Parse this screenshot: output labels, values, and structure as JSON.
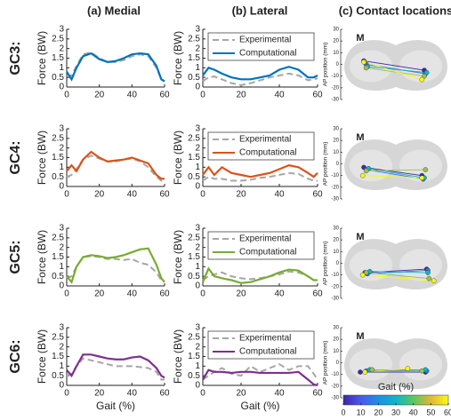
{
  "column_titles": [
    "(a) Medial",
    "(b) Lateral",
    "(c) Contact locations"
  ],
  "row_labels": [
    "GC3:",
    "GC4:",
    "GC5:",
    "GC6:"
  ],
  "chart_data": [
    {
      "type": "line",
      "ylabel": "Force (BW)",
      "xlim": [
        0,
        60
      ],
      "xticks": [
        0,
        20,
        40,
        60
      ],
      "ylim": [
        0,
        3
      ],
      "yticks": [
        0,
        0.5,
        1,
        1.5,
        2,
        2.5,
        3
      ],
      "x": [
        0,
        3,
        6,
        10,
        15,
        20,
        25,
        30,
        35,
        40,
        45,
        50,
        55,
        58,
        60
      ],
      "legend": false,
      "series": [
        {
          "color": "#a6a6a6",
          "dash": true,
          "values": [
            0.6,
            0.6,
            1.1,
            1.7,
            1.8,
            1.5,
            1.3,
            1.3,
            1.4,
            1.6,
            1.7,
            1.6,
            1.0,
            0.4,
            0.3
          ]
        },
        {
          "color": "#0072bd",
          "dash": false,
          "values": [
            0.8,
            0.4,
            1.0,
            1.6,
            1.75,
            1.45,
            1.3,
            1.35,
            1.5,
            1.7,
            1.75,
            1.7,
            1.1,
            0.4,
            0.3
          ]
        }
      ]
    },
    {
      "type": "line",
      "ylabel": "Force (BW)",
      "xlim": [
        0,
        60
      ],
      "xticks": [
        0,
        20,
        40,
        60
      ],
      "ylim": [
        0,
        3
      ],
      "yticks": [
        0,
        0.5,
        1,
        1.5,
        2,
        2.5,
        3
      ],
      "x": [
        0,
        3,
        6,
        10,
        15,
        20,
        25,
        30,
        35,
        40,
        45,
        50,
        55,
        58,
        60
      ],
      "legend": true,
      "series": [
        {
          "name": "Experimental",
          "color": "#a6a6a6",
          "dash": true,
          "values": [
            0.3,
            0.5,
            0.55,
            0.4,
            0.2,
            0.1,
            0.2,
            0.35,
            0.5,
            0.6,
            0.7,
            0.6,
            0.35,
            0.4,
            0.45
          ]
        },
        {
          "name": "Computational",
          "color": "#0072bd",
          "dash": false,
          "values": [
            0.6,
            1.0,
            0.9,
            0.7,
            0.5,
            0.4,
            0.4,
            0.5,
            0.6,
            0.9,
            1.05,
            0.9,
            0.5,
            0.5,
            0.6
          ]
        }
      ]
    },
    {
      "type": "contact",
      "label": "M",
      "ylabel": "AP position (mm)",
      "ylim": [
        -30,
        30
      ],
      "yticks": [
        -30,
        -20,
        -10,
        0,
        10,
        20,
        30
      ],
      "xlim": [
        -45,
        45
      ],
      "gait": [
        0,
        15,
        30,
        45,
        60
      ],
      "medial": {
        "x": [
          -27,
          -25,
          -24,
          -25,
          -27
        ],
        "y": [
          3,
          0,
          -2,
          -3,
          2
        ]
      },
      "lateral": {
        "x": [
          24,
          25,
          26,
          24,
          22
        ],
        "y": [
          -5,
          -8,
          -7,
          -10,
          -13
        ]
      }
    },
    {
      "type": "line",
      "ylabel": "Force (BW)",
      "xlim": [
        0,
        60
      ],
      "xticks": [
        0,
        20,
        40,
        60
      ],
      "ylim": [
        0,
        3
      ],
      "yticks": [
        0,
        0.5,
        1,
        1.5,
        2,
        2.5,
        3
      ],
      "x": [
        0,
        3,
        6,
        10,
        15,
        20,
        25,
        30,
        35,
        40,
        45,
        50,
        55,
        58,
        60
      ],
      "legend": false,
      "series": [
        {
          "color": "#a6a6a6",
          "dash": true,
          "values": [
            0.5,
            0.6,
            0.9,
            1.4,
            1.6,
            1.45,
            1.3,
            1.3,
            1.4,
            1.45,
            1.3,
            1.0,
            0.5,
            0.3,
            0.3
          ]
        },
        {
          "color": "#d95319",
          "dash": false,
          "values": [
            0.8,
            1.1,
            0.8,
            1.4,
            1.8,
            1.5,
            1.3,
            1.35,
            1.4,
            1.5,
            1.35,
            1.2,
            0.6,
            0.4,
            0.4
          ]
        }
      ]
    },
    {
      "type": "line",
      "ylabel": "Force (BW)",
      "xlim": [
        0,
        60
      ],
      "xticks": [
        0,
        20,
        40,
        60
      ],
      "ylim": [
        0,
        3
      ],
      "yticks": [
        0,
        0.5,
        1,
        1.5,
        2,
        2.5,
        3
      ],
      "x": [
        0,
        3,
        6,
        10,
        15,
        20,
        25,
        30,
        35,
        40,
        45,
        50,
        55,
        58,
        60
      ],
      "legend": true,
      "series": [
        {
          "name": "Experimental",
          "color": "#a6a6a6",
          "dash": true,
          "values": [
            0.3,
            0.5,
            0.4,
            0.4,
            0.3,
            0.3,
            0.35,
            0.45,
            0.5,
            0.6,
            0.7,
            0.65,
            0.4,
            0.3,
            0.3
          ]
        },
        {
          "name": "Computational",
          "color": "#d95319",
          "dash": false,
          "values": [
            0.6,
            1.0,
            0.6,
            1.0,
            0.7,
            0.6,
            0.5,
            0.6,
            0.7,
            0.9,
            1.1,
            1.0,
            0.7,
            0.5,
            0.7
          ]
        }
      ]
    },
    {
      "type": "contact",
      "label": "M",
      "ylabel": "AP position (mm)",
      "ylim": [
        -30,
        30
      ],
      "yticks": [
        -30,
        -20,
        -10,
        0,
        10,
        20,
        30
      ],
      "xlim": [
        -45,
        45
      ],
      "gait": [
        0,
        15,
        30,
        45,
        60
      ],
      "medial": {
        "x": [
          -27,
          -25,
          -23,
          -25,
          -28
        ],
        "y": [
          -3,
          -5,
          -4,
          -6,
          -10
        ]
      },
      "lateral": {
        "x": [
          22,
          23,
          24,
          25,
          22
        ],
        "y": [
          -10,
          -13,
          -12,
          -5,
          -12
        ]
      }
    },
    {
      "type": "line",
      "ylabel": "Force (BW)",
      "xlim": [
        0,
        60
      ],
      "xticks": [
        0,
        20,
        40,
        60
      ],
      "ylim": [
        0,
        3
      ],
      "yticks": [
        0,
        0.5,
        1,
        1.5,
        2,
        2.5,
        3
      ],
      "x": [
        0,
        3,
        6,
        10,
        15,
        20,
        25,
        30,
        35,
        40,
        45,
        50,
        55,
        58,
        60
      ],
      "legend": false,
      "series": [
        {
          "color": "#a6a6a6",
          "dash": true,
          "values": [
            0.4,
            0.5,
            1.0,
            1.5,
            1.55,
            1.5,
            1.4,
            1.4,
            1.35,
            1.4,
            1.2,
            1.1,
            0.7,
            0.3,
            0.2
          ]
        },
        {
          "color": "#77ac30",
          "dash": false,
          "values": [
            0.5,
            0.2,
            1.0,
            1.5,
            1.6,
            1.55,
            1.45,
            1.5,
            1.6,
            1.75,
            1.9,
            1.95,
            1.1,
            0.4,
            0.2
          ]
        }
      ]
    },
    {
      "type": "line",
      "ylabel": "Force (BW)",
      "xlim": [
        0,
        60
      ],
      "xticks": [
        0,
        20,
        40,
        60
      ],
      "ylim": [
        0,
        3
      ],
      "yticks": [
        0,
        0.5,
        1,
        1.5,
        2,
        2.5,
        3
      ],
      "x": [
        0,
        3,
        6,
        10,
        15,
        20,
        25,
        30,
        35,
        40,
        45,
        50,
        55,
        58,
        60
      ],
      "legend": true,
      "series": [
        {
          "name": "Experimental",
          "color": "#a6a6a6",
          "dash": true,
          "values": [
            0.3,
            0.5,
            0.6,
            0.7,
            0.5,
            0.4,
            0.35,
            0.4,
            0.5,
            0.6,
            0.75,
            0.7,
            0.5,
            0.3,
            0.3
          ]
        },
        {
          "name": "Computational",
          "color": "#77ac30",
          "dash": false,
          "values": [
            0.2,
            0.9,
            0.5,
            0.4,
            0.3,
            0.15,
            0.2,
            0.35,
            0.5,
            0.7,
            0.85,
            0.8,
            0.5,
            0.3,
            0.3
          ]
        }
      ]
    },
    {
      "type": "contact",
      "label": "M",
      "ylabel": "AP position (mm)",
      "ylim": [
        -30,
        30
      ],
      "yticks": [
        -30,
        -20,
        -10,
        0,
        10,
        20,
        30
      ],
      "xlim": [
        -45,
        45
      ],
      "gait": [
        0,
        15,
        30,
        45,
        60
      ],
      "medial": {
        "x": [
          -26,
          -24,
          -22,
          -25,
          -28
        ],
        "y": [
          -8,
          -9,
          -7,
          -8,
          -10
        ]
      },
      "lateral": {
        "x": [
          26,
          27,
          27,
          28,
          32
        ],
        "y": [
          -5,
          -6,
          -8,
          -13,
          -15
        ]
      }
    },
    {
      "type": "line",
      "ylabel": "Force (BW)",
      "xlabel": "Gait (%)",
      "xlim": [
        0,
        60
      ],
      "xticks": [
        0,
        20,
        40,
        60
      ],
      "ylim": [
        0,
        3
      ],
      "yticks": [
        0,
        0.5,
        1,
        1.5,
        2,
        2.5,
        3
      ],
      "x": [
        0,
        3,
        6,
        10,
        15,
        20,
        25,
        30,
        35,
        40,
        45,
        50,
        55,
        58,
        60
      ],
      "legend": false,
      "series": [
        {
          "color": "#a6a6a6",
          "dash": true,
          "values": [
            0.5,
            0.6,
            1.0,
            1.4,
            1.3,
            1.2,
            1.1,
            1.0,
            1.0,
            1.0,
            0.95,
            0.9,
            0.7,
            0.3,
            0.3
          ]
        },
        {
          "color": "#7e2f8e",
          "dash": false,
          "values": [
            0.8,
            0.5,
            1.0,
            1.6,
            1.6,
            1.5,
            1.4,
            1.35,
            1.35,
            1.45,
            1.5,
            1.3,
            0.9,
            0.5,
            0.4
          ]
        }
      ]
    },
    {
      "type": "line",
      "ylabel": "Force (BW)",
      "xlabel": "Gait (%)",
      "xlim": [
        0,
        60
      ],
      "xticks": [
        0,
        20,
        40,
        60
      ],
      "ylim": [
        0,
        3
      ],
      "yticks": [
        0,
        0.5,
        1,
        1.5,
        2,
        2.5,
        3
      ],
      "x": [
        0,
        3,
        6,
        10,
        15,
        20,
        25,
        30,
        35,
        40,
        45,
        50,
        55,
        58,
        60
      ],
      "legend": true,
      "series": [
        {
          "name": "Experimental",
          "color": "#a6a6a6",
          "dash": true,
          "values": [
            0.3,
            0.5,
            0.7,
            0.9,
            0.6,
            0.5,
            1.0,
            0.7,
            0.9,
            1.1,
            0.8,
            1.0,
            1.0,
            0.6,
            0.3
          ]
        },
        {
          "name": "Computational",
          "color": "#7e2f8e",
          "dash": false,
          "values": [
            0.3,
            0.8,
            0.7,
            0.7,
            0.65,
            0.7,
            0.7,
            0.65,
            0.65,
            0.65,
            0.65,
            0.7,
            0.3,
            0.05,
            0.0
          ]
        }
      ]
    },
    {
      "type": "contact",
      "label": "M",
      "ylabel": "AP position (mm)",
      "ylim": [
        -30,
        30
      ],
      "yticks": [
        -30,
        -20,
        -10,
        0,
        10,
        20,
        30
      ],
      "xlim": [
        -45,
        45
      ],
      "gait": [
        0,
        15,
        30,
        45,
        60
      ],
      "medial": {
        "x": [
          -30,
          -25,
          -22,
          -20,
          -26
        ],
        "y": [
          -8,
          -7,
          -6,
          -6,
          -8
        ]
      },
      "lateral": {
        "x": [
          25,
          26,
          25,
          22,
          10
        ],
        "y": [
          -8,
          -7,
          -6,
          -7,
          -5
        ]
      }
    }
  ],
  "colorbar": {
    "label": "Gait (%)",
    "lim": [
      0,
      60
    ],
    "ticks": [
      0,
      10,
      20,
      30,
      40,
      50,
      60
    ],
    "colors": [
      "#3e26a8",
      "#4a58f0",
      "#1f8fe0",
      "#0eb6c8",
      "#5cc75f",
      "#e0b83a",
      "#f9fb0e"
    ]
  }
}
